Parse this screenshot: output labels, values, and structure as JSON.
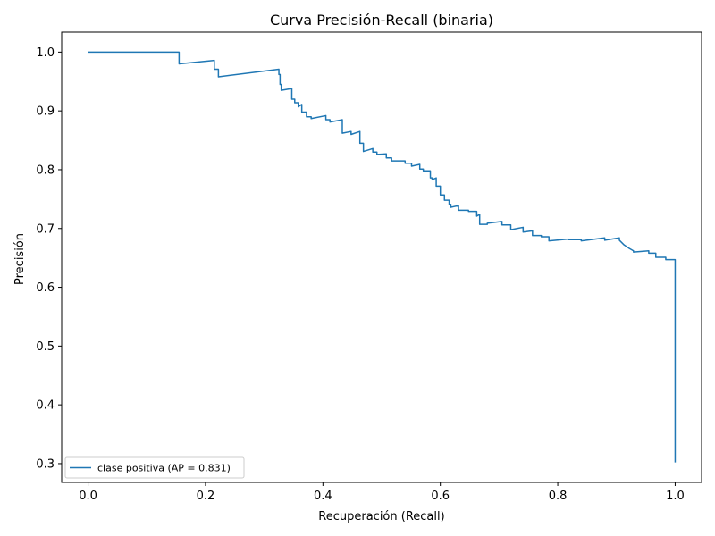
{
  "colors": {
    "series": "#1f77b4",
    "axis": "#000000",
    "background": "#ffffff",
    "legend_border": "#cccccc"
  },
  "chart_data": {
    "type": "line",
    "title": "Curva Precisión-Recall (binaria)",
    "xlabel": "Recuperación (Recall)",
    "ylabel": "Precisión",
    "xlim": [
      -0.045,
      1.045
    ],
    "ylim": [
      0.268,
      1.034
    ],
    "xticks": [
      0.0,
      0.2,
      0.4,
      0.6,
      0.8,
      1.0
    ],
    "xtick_labels": [
      "0.0",
      "0.2",
      "0.4",
      "0.6",
      "0.8",
      "1.0"
    ],
    "yticks": [
      0.3,
      0.4,
      0.5,
      0.6,
      0.7,
      0.8,
      0.9,
      1.0
    ],
    "ytick_labels": [
      "0.3",
      "0.4",
      "0.5",
      "0.6",
      "0.7",
      "0.8",
      "0.9",
      "1.0"
    ],
    "grid": false,
    "legend_position": "lower-left",
    "series": [
      {
        "name": "clase positiva (AP = 0.831)",
        "x": [
          0.0,
          0.155,
          0.155,
          0.215,
          0.215,
          0.222,
          0.222,
          0.325,
          0.325,
          0.327,
          0.327,
          0.329,
          0.329,
          0.347,
          0.347,
          0.352,
          0.352,
          0.358,
          0.358,
          0.364,
          0.364,
          0.372,
          0.372,
          0.38,
          0.38,
          0.405,
          0.405,
          0.412,
          0.412,
          0.433,
          0.433,
          0.448,
          0.448,
          0.463,
          0.463,
          0.469,
          0.469,
          0.485,
          0.485,
          0.492,
          0.492,
          0.508,
          0.508,
          0.517,
          0.517,
          0.54,
          0.54,
          0.551,
          0.551,
          0.565,
          0.565,
          0.571,
          0.571,
          0.583,
          0.583,
          0.586,
          0.586,
          0.593,
          0.593,
          0.6,
          0.6,
          0.607,
          0.607,
          0.615,
          0.615,
          0.618,
          0.618,
          0.631,
          0.631,
          0.648,
          0.648,
          0.662,
          0.662,
          0.667,
          0.667,
          0.68,
          0.68,
          0.705,
          0.705,
          0.72,
          0.72,
          0.741,
          0.741,
          0.757,
          0.757,
          0.772,
          0.772,
          0.785,
          0.785,
          0.818,
          0.818,
          0.84,
          0.84,
          0.88,
          0.88,
          0.905,
          0.905,
          0.913,
          0.913,
          0.922,
          0.922,
          0.929,
          0.929,
          0.955,
          0.955,
          0.967,
          0.967,
          0.984,
          0.984,
          1.0,
          1.0
        ],
        "y": [
          1.0,
          1.0,
          0.98,
          0.986,
          0.971,
          0.971,
          0.958,
          0.971,
          0.962,
          0.962,
          0.945,
          0.945,
          0.935,
          0.938,
          0.92,
          0.92,
          0.914,
          0.914,
          0.907,
          0.911,
          0.898,
          0.898,
          0.89,
          0.89,
          0.887,
          0.892,
          0.885,
          0.885,
          0.881,
          0.885,
          0.862,
          0.865,
          0.86,
          0.865,
          0.845,
          0.845,
          0.831,
          0.836,
          0.83,
          0.83,
          0.826,
          0.827,
          0.82,
          0.82,
          0.815,
          0.815,
          0.811,
          0.811,
          0.806,
          0.809,
          0.801,
          0.801,
          0.798,
          0.798,
          0.786,
          0.786,
          0.783,
          0.786,
          0.772,
          0.772,
          0.757,
          0.757,
          0.748,
          0.748,
          0.741,
          0.741,
          0.736,
          0.739,
          0.731,
          0.731,
          0.729,
          0.729,
          0.721,
          0.724,
          0.707,
          0.707,
          0.709,
          0.712,
          0.706,
          0.706,
          0.698,
          0.702,
          0.694,
          0.696,
          0.688,
          0.688,
          0.686,
          0.686,
          0.679,
          0.682,
          0.681,
          0.681,
          0.679,
          0.684,
          0.68,
          0.684,
          0.68,
          0.672,
          0.672,
          0.666,
          0.666,
          0.662,
          0.66,
          0.662,
          0.658,
          0.658,
          0.651,
          0.651,
          0.647,
          0.647,
          0.302
        ]
      }
    ]
  }
}
